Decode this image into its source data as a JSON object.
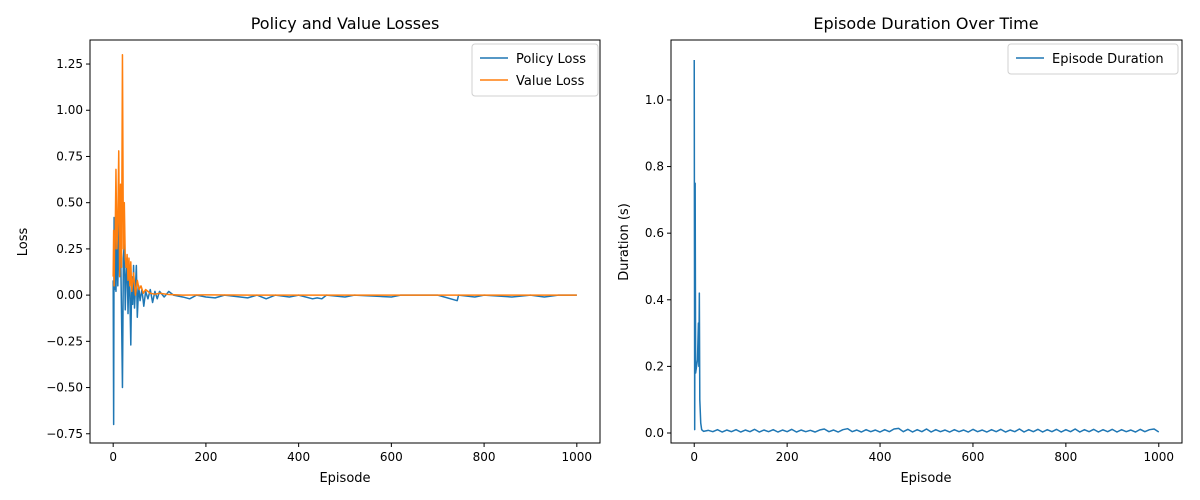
{
  "chart_data": [
    {
      "type": "line",
      "title": "Policy and Value Losses",
      "xlabel": "Episode",
      "ylabel": "Loss",
      "xlim": [
        -50,
        1050
      ],
      "ylim": [
        -0.8,
        1.38
      ],
      "xticks": [
        0,
        200,
        400,
        600,
        800,
        1000
      ],
      "xtick_labels": [
        "0",
        "200",
        "400",
        "600",
        "800",
        "1000"
      ],
      "yticks": [
        -0.75,
        -0.5,
        -0.25,
        0.0,
        0.25,
        0.5,
        0.75,
        1.0,
        1.25
      ],
      "ytick_labels": [
        "−0.75",
        "−0.50",
        "−0.25",
        "0.00",
        "0.25",
        "0.50",
        "0.75",
        "1.00",
        "1.25"
      ],
      "grid": false,
      "legend": "top-right",
      "series": [
        {
          "name": "Policy Loss",
          "color": "#1f77b4",
          "points": [
            [
              0,
              0.08
            ],
            [
              1,
              -0.7
            ],
            [
              2,
              0.42
            ],
            [
              3,
              0.03
            ],
            [
              4,
              0.35
            ],
            [
              6,
              0.02
            ],
            [
              8,
              0.3
            ],
            [
              10,
              0.05
            ],
            [
              12,
              0.4
            ],
            [
              14,
              0.1
            ],
            [
              16,
              0.25
            ],
            [
              18,
              -0.1
            ],
            [
              20,
              -0.5
            ],
            [
              22,
              0.2
            ],
            [
              24,
              0.28
            ],
            [
              26,
              -0.08
            ],
            [
              28,
              0.1
            ],
            [
              30,
              0.2
            ],
            [
              32,
              -0.1
            ],
            [
              34,
              0.15
            ],
            [
              36,
              0.0
            ],
            [
              38,
              -0.27
            ],
            [
              40,
              0.1
            ],
            [
              42,
              -0.05
            ],
            [
              44,
              0.16
            ],
            [
              46,
              -0.07
            ],
            [
              48,
              0.04
            ],
            [
              50,
              0.16
            ],
            [
              52,
              -0.12
            ],
            [
              55,
              0.05
            ],
            [
              58,
              -0.03
            ],
            [
              62,
              0.03
            ],
            [
              66,
              -0.06
            ],
            [
              70,
              0.02
            ],
            [
              75,
              -0.02
            ],
            [
              80,
              0.03
            ],
            [
              85,
              -0.04
            ],
            [
              90,
              0.02
            ],
            [
              95,
              -0.02
            ],
            [
              100,
              0.02
            ],
            [
              110,
              -0.01
            ],
            [
              120,
              0.02
            ],
            [
              130,
              0.0
            ],
            [
              150,
              -0.01
            ],
            [
              165,
              -0.02
            ],
            [
              180,
              0.0
            ],
            [
              200,
              -0.01
            ],
            [
              220,
              -0.015
            ],
            [
              240,
              0.0
            ],
            [
              290,
              -0.015
            ],
            [
              310,
              0.0
            ],
            [
              330,
              -0.02
            ],
            [
              350,
              0.0
            ],
            [
              380,
              -0.01
            ],
            [
              400,
              0.0
            ],
            [
              430,
              -0.02
            ],
            [
              440,
              -0.015
            ],
            [
              450,
              -0.02
            ],
            [
              460,
              0.0
            ],
            [
              500,
              -0.01
            ],
            [
              520,
              0.0
            ],
            [
              600,
              -0.01
            ],
            [
              620,
              0.0
            ],
            [
              700,
              0.0
            ],
            [
              742,
              -0.03
            ],
            [
              745,
              0.0
            ],
            [
              780,
              -0.01
            ],
            [
              800,
              0.0
            ],
            [
              860,
              -0.01
            ],
            [
              900,
              0.0
            ],
            [
              930,
              -0.01
            ],
            [
              960,
              0.0
            ],
            [
              1000,
              0.0
            ]
          ]
        },
        {
          "name": "Value Loss",
          "color": "#ff7f0e",
          "points": [
            [
              0,
              0.1
            ],
            [
              1,
              0.35
            ],
            [
              2,
              0.05
            ],
            [
              3,
              0.3
            ],
            [
              4,
              0.25
            ],
            [
              6,
              0.68
            ],
            [
              8,
              0.25
            ],
            [
              10,
              0.4
            ],
            [
              12,
              0.78
            ],
            [
              14,
              0.1
            ],
            [
              16,
              0.6
            ],
            [
              18,
              0.15
            ],
            [
              20,
              1.3
            ],
            [
              22,
              0.25
            ],
            [
              24,
              0.5
            ],
            [
              26,
              0.2
            ],
            [
              28,
              0.15
            ],
            [
              30,
              0.22
            ],
            [
              32,
              0.08
            ],
            [
              34,
              0.2
            ],
            [
              36,
              0.05
            ],
            [
              38,
              0.18
            ],
            [
              40,
              0.02
            ],
            [
              44,
              0.12
            ],
            [
              48,
              0.0
            ],
            [
              52,
              0.08
            ],
            [
              56,
              0.03
            ],
            [
              60,
              0.05
            ],
            [
              65,
              0.01
            ],
            [
              70,
              0.03
            ],
            [
              80,
              0.01
            ],
            [
              90,
              0.005
            ],
            [
              100,
              0.01
            ],
            [
              120,
              0.003
            ],
            [
              150,
              0.0
            ],
            [
              200,
              0.001
            ],
            [
              300,
              0.0
            ],
            [
              500,
              0.0
            ],
            [
              700,
              0.0
            ],
            [
              1000,
              0.0
            ]
          ]
        }
      ]
    },
    {
      "type": "line",
      "title": "Episode Duration Over Time",
      "xlabel": "Episode",
      "ylabel": "Duration (s)",
      "xlim": [
        -50,
        1050
      ],
      "ylim": [
        -0.03,
        1.18
      ],
      "xticks": [
        0,
        200,
        400,
        600,
        800,
        1000
      ],
      "xtick_labels": [
        "0",
        "200",
        "400",
        "600",
        "800",
        "1000"
      ],
      "yticks": [
        0.0,
        0.2,
        0.4,
        0.6,
        0.8,
        1.0
      ],
      "ytick_labels": [
        "0.0",
        "0.2",
        "0.4",
        "0.6",
        "0.8",
        "1.0"
      ],
      "grid": false,
      "legend": "top-right",
      "series": [
        {
          "name": "Episode Duration",
          "color": "#1f77b4",
          "points": [
            [
              0,
              1.12
            ],
            [
              1,
              0.01
            ],
            [
              2,
              0.75
            ],
            [
              3,
              0.18
            ],
            [
              5,
              0.2
            ],
            [
              7,
              0.22
            ],
            [
              9,
              0.33
            ],
            [
              10,
              0.2
            ],
            [
              11,
              0.42
            ],
            [
              12,
              0.1
            ],
            [
              14,
              0.03
            ],
            [
              16,
              0.01
            ],
            [
              20,
              0.005
            ],
            [
              30,
              0.008
            ],
            [
              40,
              0.004
            ],
            [
              50,
              0.01
            ],
            [
              60,
              0.003
            ],
            [
              70,
              0.009
            ],
            [
              80,
              0.004
            ],
            [
              90,
              0.01
            ],
            [
              100,
              0.003
            ],
            [
              110,
              0.009
            ],
            [
              120,
              0.004
            ],
            [
              130,
              0.011
            ],
            [
              140,
              0.003
            ],
            [
              150,
              0.009
            ],
            [
              160,
              0.004
            ],
            [
              170,
              0.01
            ],
            [
              180,
              0.003
            ],
            [
              190,
              0.009
            ],
            [
              200,
              0.004
            ],
            [
              210,
              0.011
            ],
            [
              220,
              0.003
            ],
            [
              230,
              0.009
            ],
            [
              240,
              0.004
            ],
            [
              250,
              0.008
            ],
            [
              260,
              0.003
            ],
            [
              270,
              0.009
            ],
            [
              280,
              0.012
            ],
            [
              290,
              0.004
            ],
            [
              300,
              0.009
            ],
            [
              310,
              0.003
            ],
            [
              320,
              0.01
            ],
            [
              330,
              0.013
            ],
            [
              340,
              0.004
            ],
            [
              350,
              0.009
            ],
            [
              360,
              0.003
            ],
            [
              370,
              0.01
            ],
            [
              380,
              0.004
            ],
            [
              390,
              0.009
            ],
            [
              400,
              0.003
            ],
            [
              410,
              0.01
            ],
            [
              420,
              0.004
            ],
            [
              430,
              0.012
            ],
            [
              440,
              0.014
            ],
            [
              450,
              0.004
            ],
            [
              460,
              0.011
            ],
            [
              470,
              0.003
            ],
            [
              480,
              0.01
            ],
            [
              490,
              0.004
            ],
            [
              500,
              0.012
            ],
            [
              510,
              0.003
            ],
            [
              520,
              0.01
            ],
            [
              530,
              0.004
            ],
            [
              540,
              0.009
            ],
            [
              550,
              0.003
            ],
            [
              560,
              0.01
            ],
            [
              570,
              0.004
            ],
            [
              580,
              0.009
            ],
            [
              590,
              0.003
            ],
            [
              600,
              0.011
            ],
            [
              610,
              0.004
            ],
            [
              620,
              0.009
            ],
            [
              630,
              0.003
            ],
            [
              640,
              0.01
            ],
            [
              650,
              0.004
            ],
            [
              660,
              0.011
            ],
            [
              670,
              0.003
            ],
            [
              680,
              0.009
            ],
            [
              690,
              0.004
            ],
            [
              700,
              0.012
            ],
            [
              710,
              0.003
            ],
            [
              720,
              0.01
            ],
            [
              730,
              0.004
            ],
            [
              740,
              0.011
            ],
            [
              750,
              0.003
            ],
            [
              760,
              0.01
            ],
            [
              770,
              0.004
            ],
            [
              780,
              0.011
            ],
            [
              790,
              0.003
            ],
            [
              800,
              0.01
            ],
            [
              810,
              0.004
            ],
            [
              820,
              0.012
            ],
            [
              830,
              0.003
            ],
            [
              840,
              0.01
            ],
            [
              850,
              0.004
            ],
            [
              860,
              0.011
            ],
            [
              870,
              0.003
            ],
            [
              880,
              0.01
            ],
            [
              890,
              0.004
            ],
            [
              900,
              0.011
            ],
            [
              910,
              0.003
            ],
            [
              920,
              0.01
            ],
            [
              930,
              0.004
            ],
            [
              940,
              0.009
            ],
            [
              950,
              0.003
            ],
            [
              960,
              0.011
            ],
            [
              970,
              0.004
            ],
            [
              980,
              0.01
            ],
            [
              990,
              0.012
            ],
            [
              1000,
              0.003
            ]
          ]
        }
      ]
    }
  ]
}
